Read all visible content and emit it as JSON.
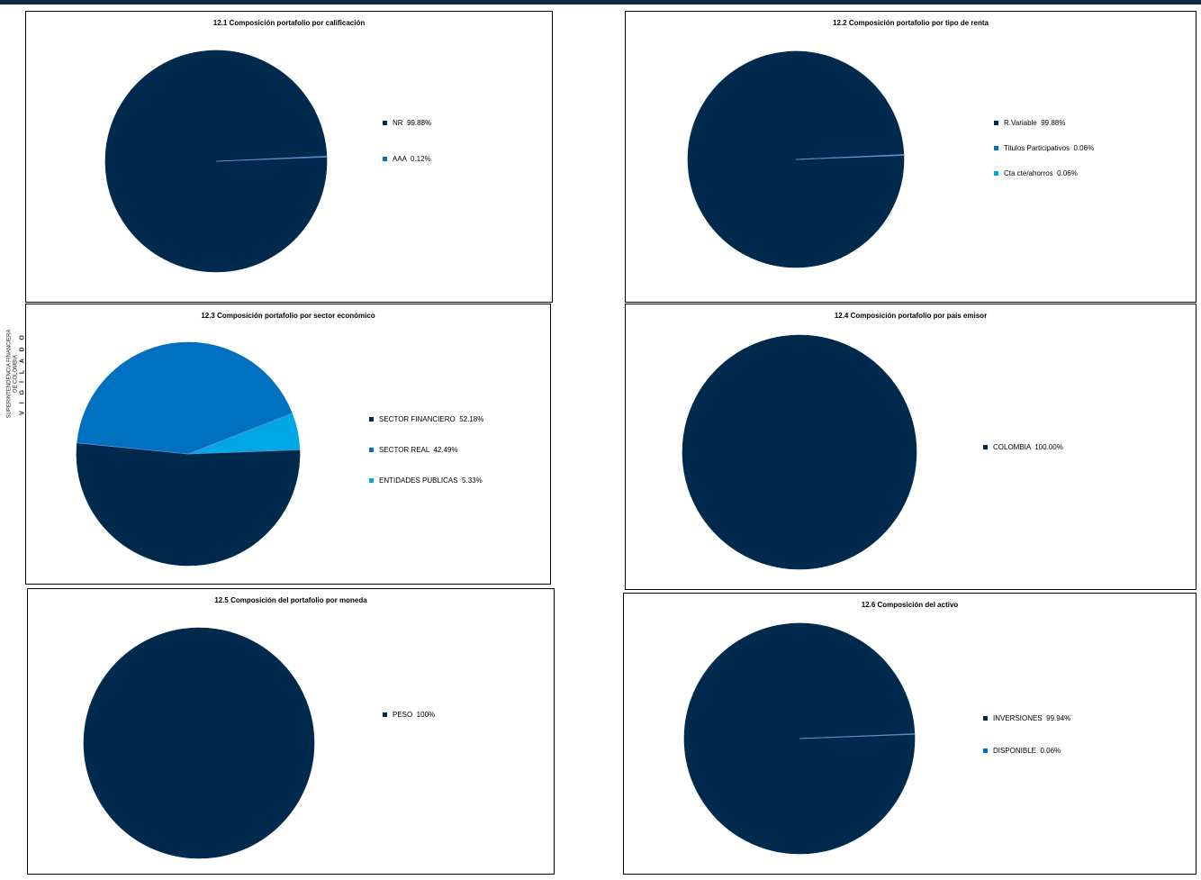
{
  "side_stamp": {
    "line1": "SUPERINTENDENCIA FINANCIERA",
    "line2": "DE COLOMBIA",
    "vigilado": "V I G I L A D O"
  },
  "colors": {
    "dark": "#002a4d",
    "mid": "#0070c0",
    "light": "#00a8e6",
    "header": "#0b2b46"
  },
  "chart_data": [
    {
      "id": "p1",
      "type": "pie",
      "title": "12.1 Composición portafolio por calificación",
      "slices": [
        {
          "label": "NR",
          "value": 99.88,
          "display": "99.88%",
          "color": "#002a4d"
        },
        {
          "label": "AAA",
          "value": 0.12,
          "display": "0.12%",
          "color": "#0070c0"
        }
      ]
    },
    {
      "id": "p2",
      "type": "pie",
      "title": "12.2 Composición portafolio por tipo de renta",
      "slices": [
        {
          "label": "R.Variable",
          "value": 99.88,
          "display": "99.88%",
          "color": "#002a4d"
        },
        {
          "label": "Titulos Participativos",
          "value": 0.06,
          "display": "0.06%",
          "color": "#0070c0"
        },
        {
          "label": "Cta cte/ahorros",
          "value": 0.06,
          "display": "0.06%",
          "color": "#00a8e6"
        }
      ]
    },
    {
      "id": "p3",
      "type": "pie",
      "title": "12.3 Composición portafolio por sector económico",
      "slices": [
        {
          "label": "SECTOR FINANCIERO",
          "value": 52.18,
          "display": "52.18%",
          "color": "#002a4d"
        },
        {
          "label": "SECTOR REAL",
          "value": 42.49,
          "display": "42.49%",
          "color": "#0070c0"
        },
        {
          "label": "ENTIDADES PUBLICAS",
          "value": 5.33,
          "display": "5.33%",
          "color": "#00a8e6"
        }
      ]
    },
    {
      "id": "p4",
      "type": "pie",
      "title": "12.4 Composición portafolio por país emisor",
      "slices": [
        {
          "label": "COLOMBIA",
          "value": 100.0,
          "display": "100.00%",
          "color": "#002a4d"
        }
      ]
    },
    {
      "id": "p5",
      "type": "pie",
      "title": "12.5 Composición del portafolio por moneda",
      "slices": [
        {
          "label": "PESO",
          "value": 100,
          "display": "100%",
          "color": "#002a4d"
        }
      ]
    },
    {
      "id": "p6",
      "type": "pie",
      "title": "12.6 Composición del activo",
      "slices": [
        {
          "label": "INVERSIONES",
          "value": 99.94,
          "display": "99.94%",
          "color": "#002a4d"
        },
        {
          "label": "DISPONIBLE",
          "value": 0.06,
          "display": "0.06%",
          "color": "#0070c0"
        }
      ]
    }
  ]
}
